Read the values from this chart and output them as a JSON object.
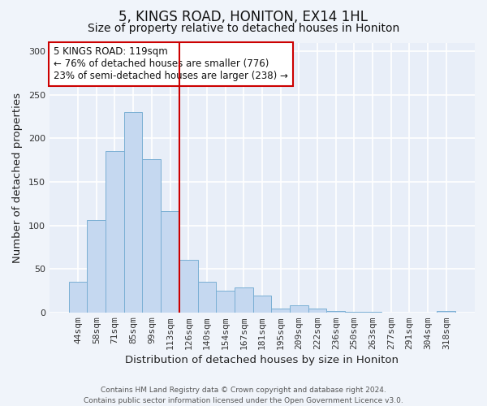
{
  "title": "5, KINGS ROAD, HONITON, EX14 1HL",
  "subtitle": "Size of property relative to detached houses in Honiton",
  "xlabel": "Distribution of detached houses by size in Honiton",
  "ylabel": "Number of detached properties",
  "bar_labels": [
    "44sqm",
    "58sqm",
    "71sqm",
    "85sqm",
    "99sqm",
    "113sqm",
    "126sqm",
    "140sqm",
    "154sqm",
    "167sqm",
    "181sqm",
    "195sqm",
    "209sqm",
    "222sqm",
    "236sqm",
    "250sqm",
    "263sqm",
    "277sqm",
    "291sqm",
    "304sqm",
    "318sqm"
  ],
  "bar_heights": [
    35,
    106,
    185,
    230,
    176,
    116,
    60,
    35,
    25,
    29,
    19,
    4,
    8,
    4,
    2,
    1,
    1,
    0,
    0,
    0,
    2
  ],
  "bar_color": "#c5d8f0",
  "bar_edge_color": "#7aafd4",
  "vline_x": 5.5,
  "vline_color": "#cc0000",
  "annotation_text": "5 KINGS ROAD: 119sqm\n← 76% of detached houses are smaller (776)\n23% of semi-detached houses are larger (238) →",
  "annotation_box_color": "#ffffff",
  "annotation_box_edge": "#cc0000",
  "ylim": [
    0,
    310
  ],
  "yticks": [
    0,
    50,
    100,
    150,
    200,
    250,
    300
  ],
  "footnote": "Contains HM Land Registry data © Crown copyright and database right 2024.\nContains public sector information licensed under the Open Government Licence v3.0.",
  "bg_color": "#f0f4fa",
  "plot_bg_color": "#e8eef8",
  "title_fontsize": 12,
  "subtitle_fontsize": 10,
  "axis_label_fontsize": 9.5,
  "tick_fontsize": 8,
  "footnote_fontsize": 6.5,
  "annotation_fontsize": 8.5
}
